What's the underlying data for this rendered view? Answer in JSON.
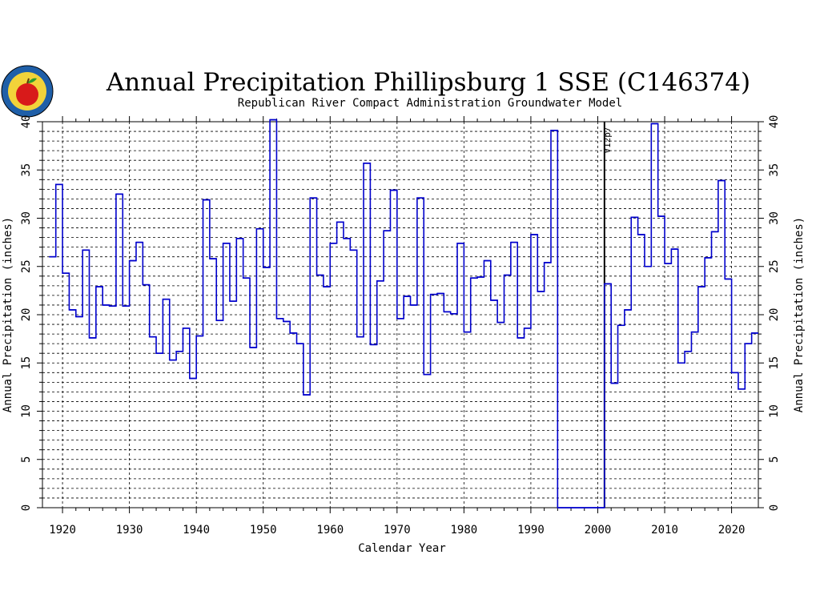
{
  "chart_data": {
    "type": "line",
    "step": true,
    "title": "Annual Precipitation Phillipsburg 1 SSE (C146374)",
    "subtitle": "Republican River Compact Administration Groundwater Model",
    "xlabel": "Calendar Year",
    "ylabel": "Annual Precipitation (inches)",
    "xlim": [
      1917,
      2024
    ],
    "ylim": [
      0,
      40
    ],
    "x_ticks": [
      "1920",
      "1930",
      "1940",
      "1950",
      "1960",
      "1970",
      "1980",
      "1990",
      "2000",
      "2010",
      "2020"
    ],
    "y_ticks": [
      "0",
      "5",
      "10",
      "15",
      "20",
      "25",
      "30",
      "35",
      "40"
    ],
    "grid": true,
    "series": [
      {
        "color": "#0000cc",
        "x": [
          1918,
          1919,
          1920,
          1921,
          1922,
          1923,
          1924,
          1925,
          1926,
          1927,
          1928,
          1929,
          1930,
          1931,
          1932,
          1933,
          1934,
          1935,
          1936,
          1937,
          1938,
          1939,
          1940,
          1941,
          1942,
          1943,
          1944,
          1945,
          1946,
          1947,
          1948,
          1949,
          1950,
          1951,
          1952,
          1953,
          1954,
          1955,
          1956,
          1957,
          1958,
          1959,
          1960,
          1961,
          1962,
          1963,
          1964,
          1965,
          1966,
          1967,
          1968,
          1969,
          1970,
          1971,
          1972,
          1973,
          1974,
          1975,
          1976,
          1977,
          1978,
          1979,
          1980,
          1981,
          1982,
          1983,
          1984,
          1985,
          1986,
          1987,
          1988,
          1989,
          1990,
          1991,
          1992,
          1993,
          1994,
          1995,
          1996,
          1997,
          1998,
          1999,
          2000,
          2001,
          2002,
          2003,
          2004,
          2005,
          2006,
          2007,
          2008,
          2009,
          2010,
          2011,
          2012,
          2013,
          2014,
          2015,
          2016,
          2017,
          2018,
          2019,
          2020,
          2021,
          2022,
          2023
        ],
        "y": [
          26.0,
          33.5,
          24.3,
          20.5,
          19.8,
          26.7,
          17.6,
          22.9,
          21.0,
          20.9,
          32.5,
          20.9,
          25.6,
          27.5,
          23.1,
          17.7,
          16.0,
          21.6,
          15.3,
          16.2,
          18.6,
          13.4,
          17.8,
          31.9,
          25.8,
          19.4,
          27.4,
          21.4,
          27.9,
          23.8,
          16.6,
          28.9,
          24.9,
          40.2,
          19.6,
          19.3,
          18.1,
          17.0,
          11.7,
          32.1,
          24.1,
          22.9,
          27.4,
          29.6,
          27.9,
          26.7,
          17.7,
          35.7,
          16.9,
          23.5,
          28.7,
          32.9,
          19.6,
          21.9,
          21.0,
          32.1,
          13.8,
          22.1,
          22.2,
          20.3,
          20.1,
          27.4,
          18.2,
          23.8,
          23.9,
          25.6,
          21.5,
          19.2,
          24.1,
          27.5,
          17.6,
          18.6,
          28.3,
          22.4,
          25.4,
          39.1,
          0.0,
          0.0,
          0.0,
          0.0,
          0.0,
          0.0,
          0.0,
          23.2,
          12.9,
          18.9,
          20.5,
          30.1,
          28.3,
          25.0,
          39.8,
          30.2,
          25.3,
          26.8,
          15.0,
          16.2,
          18.2,
          22.9,
          25.9,
          28.6,
          33.9,
          23.7,
          14.0,
          12.3,
          17.0,
          18.1
        ]
      }
    ],
    "annotations": [
      {
        "text": "V12p7",
        "x": 2001
      }
    ]
  }
}
